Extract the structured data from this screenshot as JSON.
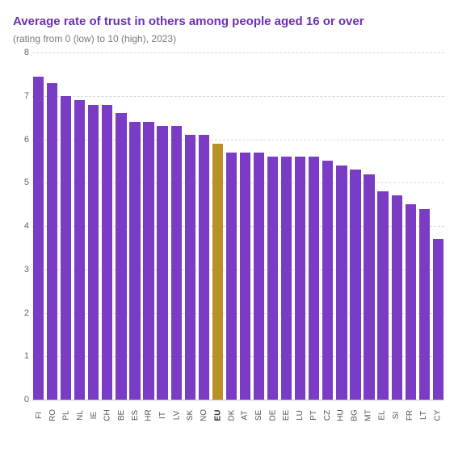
{
  "chart": {
    "type": "bar",
    "title": "Average rate of trust in others among people aged 16 or over",
    "subtitle": "(rating from 0 (low) to 10 (high), 2023)",
    "title_color": "#6a2fb5",
    "title_fontsize": 15,
    "subtitle_color": "#7a7a7a",
    "subtitle_fontsize": 12,
    "background_color": "#ffffff",
    "grid_color": "#d9d9d9",
    "baseline_color": "#bfbfbf",
    "ylim": [
      0,
      8
    ],
    "ytick_step": 1,
    "yticks": [
      "0",
      "1",
      "2",
      "3",
      "4",
      "5",
      "6",
      "7",
      "8"
    ],
    "bar_color": "#7a3cc5",
    "highlight_color": "#b99024",
    "axis_fontsize": 11,
    "xaxis_fontsize": 10,
    "bar_width_ratio": 0.88,
    "categories": [
      "FI",
      "RO",
      "PL",
      "NL",
      "IE",
      "CH",
      "BE",
      "ES",
      "HR",
      "IT",
      "LV",
      "SK",
      "NO",
      "EU",
      "DK",
      "AT",
      "SE",
      "DE",
      "EE",
      "LU",
      "PT",
      "CZ",
      "HU",
      "BG",
      "MT",
      "EL",
      "SI",
      "FR",
      "LT",
      "CY"
    ],
    "values": [
      7.45,
      7.3,
      7.0,
      6.9,
      6.8,
      6.8,
      6.6,
      6.4,
      6.4,
      6.3,
      6.3,
      6.1,
      6.1,
      5.9,
      5.7,
      5.7,
      5.7,
      5.6,
      5.6,
      5.6,
      5.6,
      5.5,
      5.4,
      5.3,
      5.2,
      4.8,
      4.7,
      4.5,
      4.4,
      3.7
    ],
    "highlight_index": 13
  }
}
